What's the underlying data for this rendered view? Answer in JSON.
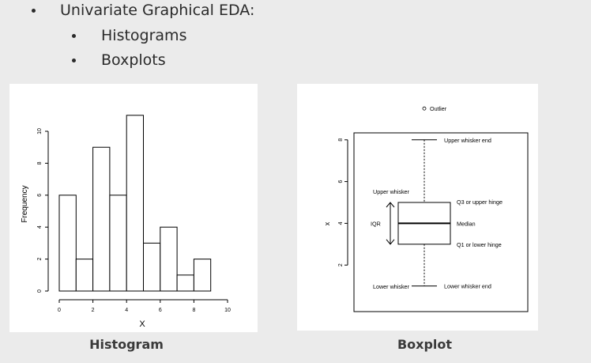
{
  "bullets": {
    "level1": "Univariate Graphical EDA:",
    "level2": [
      "Histograms",
      "Boxplots"
    ]
  },
  "histogram_caption": "Histogram",
  "boxplot_caption": "Boxplot",
  "chart_data": [
    {
      "type": "bar",
      "bin_edges": [
        0,
        1,
        2,
        3,
        4,
        5,
        6,
        7,
        8,
        9
      ],
      "values": [
        6,
        2,
        9,
        6,
        11,
        3,
        4,
        1,
        2
      ],
      "xlabel": "X",
      "ylabel": "Frequency",
      "xticks": [
        "0",
        "2",
        "4",
        "6",
        "8",
        "10"
      ],
      "yticks": [
        "0",
        "2",
        "4",
        "6",
        "8",
        "10"
      ],
      "xlim": [
        0,
        10
      ],
      "ylim": [
        0,
        11
      ]
    },
    {
      "type": "boxplot",
      "ylabel": "x",
      "yticks": [
        "2",
        "4",
        "6",
        "8"
      ],
      "stats": {
        "lower_whisker_end": 1,
        "q1": 3,
        "median": 4,
        "q3": 5,
        "upper_whisker_end": 8,
        "outlier": 9.5
      },
      "annotations": {
        "outlier": "Outlier",
        "upper_whisker_end": "Upper whisker end",
        "upper_whisker": "Upper whisker",
        "q3": "Q3 or upper hinge",
        "iqr": "IQR",
        "median": "Median",
        "q1": "Q1 or lower hinge",
        "lower_whisker": "Lower whisker",
        "lower_whisker_end": "Lower whisker end"
      }
    }
  ]
}
